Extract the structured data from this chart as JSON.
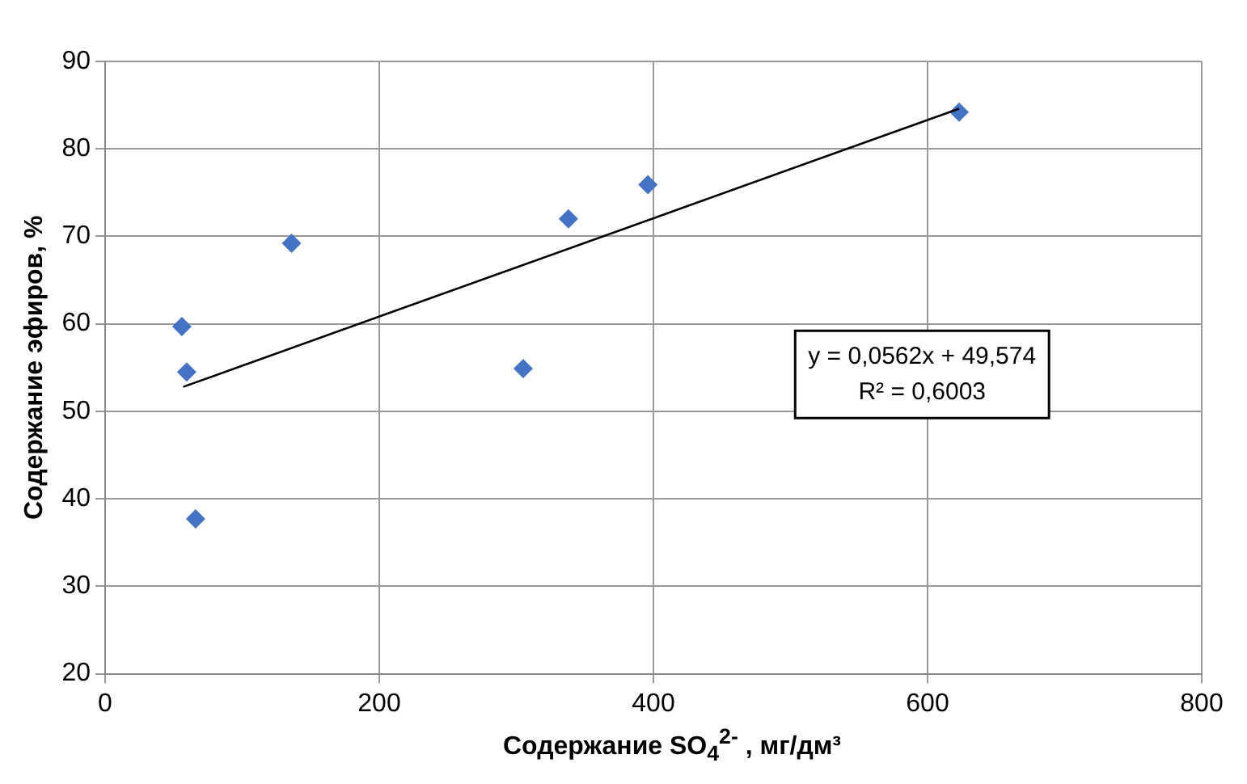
{
  "chart_data": {
    "type": "scatter",
    "xlabel": "Содержание SO$_{4}$$^{2-}$ , мг/дм³",
    "ylabel": "Содержание эфиров, %",
    "xlim": [
      0,
      800
    ],
    "xticks": [
      0,
      200,
      400,
      600,
      800
    ],
    "ylim": [
      20,
      90
    ],
    "yticks": [
      20,
      30,
      40,
      50,
      60,
      70,
      80,
      90
    ],
    "grid": true,
    "legend": false,
    "annotations": [
      "y = 0,0562x + 49,574",
      "R² = 0,6003"
    ],
    "series": [
      {
        "color": "#4472c4",
        "marker": "diamond",
        "x": [
          56,
          59.5,
          66,
          136,
          305,
          338,
          396,
          623
        ],
        "values": [
          59.7,
          54.5,
          37.7,
          69.2,
          54.9,
          72.0,
          75.9,
          84.2
        ]
      },
      {
        "type": "line",
        "color": "#000000",
        "marker": "none",
        "line_style": "solid",
        "x": [
          57,
          623
        ],
        "values": [
          52.8,
          84.6
        ]
      }
    ]
  }
}
